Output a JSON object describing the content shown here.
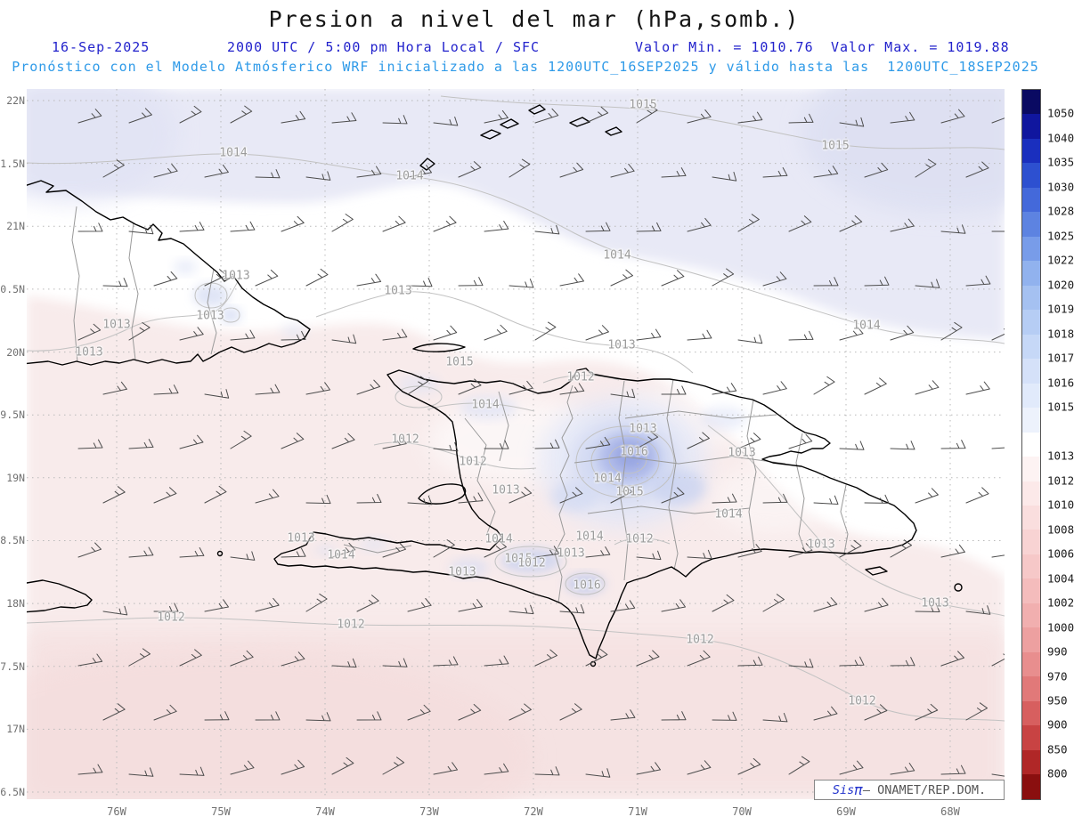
{
  "title": "Presion a nivel del mar (hPa,somb.)",
  "header": {
    "date": "16-Sep-2025",
    "time": "2000 UTC / 5:00 pm Hora Local / SFC",
    "valor_min": "Valor Min. = 1010.76",
    "valor_max": "Valor Max. = 1019.88",
    "model_line": "Pronóstico con el Modelo Atmósferico WRF inicializado a las 1200UTC_16SEP2025 y válido hasta las  1200UTC_18SEP2025"
  },
  "watermark": {
    "sis": "Sis",
    "pi": "π",
    "rest": "– ONAMET/REP.DOM."
  },
  "chart_data": {
    "type": "heatmap",
    "title": "Presion a nivel del mar (hPa,somb.)",
    "variable": "Sea level pressure (hPa, shaded) with wind barbs, WRF forecast",
    "date": "16-Sep-2025",
    "valid_time": "2000 UTC / 5:00 pm Hora Local / SFC",
    "min_value": 1010.76,
    "max_value": 1019.88,
    "x_ticks": [
      "76W",
      "75W",
      "74W",
      "73W",
      "72W",
      "71W",
      "70W",
      "69W",
      "68W"
    ],
    "y_ticks": [
      "22N",
      "1.5N",
      "21N",
      "0.5N",
      "20N",
      "9.5N",
      "19N",
      "8.5N",
      "18N",
      "7.5N",
      "17N",
      "6.5N"
    ],
    "legend_position": "right",
    "grid": "dashed",
    "colorbar": {
      "segments": [
        {
          "color": "#0a0a62",
          "label": "1050"
        },
        {
          "color": "#10169e",
          "label": "1040"
        },
        {
          "color": "#1a2fbe",
          "label": "1035"
        },
        {
          "color": "#2d50d0",
          "label": "1030"
        },
        {
          "color": "#4469da",
          "label": "1028"
        },
        {
          "color": "#5d83e1",
          "label": "1025"
        },
        {
          "color": "#789ce9",
          "label": "1022"
        },
        {
          "color": "#91b2ee",
          "label": "1020"
        },
        {
          "color": "#a5c1f1",
          "label": "1019"
        },
        {
          "color": "#b6cdf4",
          "label": "1018"
        },
        {
          "color": "#c6d8f7",
          "label": "1017"
        },
        {
          "color": "#d5e1f9",
          "label": "1016"
        },
        {
          "color": "#e1eafb",
          "label": "1015"
        },
        {
          "color": "#edf2fc",
          "label": ""
        },
        {
          "color": "#ffffff",
          "label": "1013"
        },
        {
          "color": "#fdf3f3",
          "label": "1012"
        },
        {
          "color": "#fce9e9",
          "label": "1010"
        },
        {
          "color": "#fadede",
          "label": "1008"
        },
        {
          "color": "#f8d3d3",
          "label": "1006"
        },
        {
          "color": "#f6c8c8",
          "label": "1004"
        },
        {
          "color": "#f4bcbc",
          "label": "1002"
        },
        {
          "color": "#f1afaf",
          "label": "1000"
        },
        {
          "color": "#eda0a0",
          "label": "990"
        },
        {
          "color": "#e88e8e",
          "label": "970"
        },
        {
          "color": "#e17979",
          "label": "950"
        },
        {
          "color": "#d75f5f",
          "label": "900"
        },
        {
          "color": "#c84343",
          "label": "850"
        },
        {
          "color": "#b02727",
          "label": "800"
        },
        {
          "color": "#8a0f0f",
          "label": ""
        }
      ]
    },
    "contour_labels_hpa": [
      {
        "v": "1015",
        "x": 722,
        "y": 118
      },
      {
        "v": "1014",
        "x": 262,
        "y": 172
      },
      {
        "v": "1015",
        "x": 938,
        "y": 164
      },
      {
        "v": "1014",
        "x": 460,
        "y": 198
      },
      {
        "v": "1014",
        "x": 693,
        "y": 287
      },
      {
        "v": "1013",
        "x": 265,
        "y": 310
      },
      {
        "v": "1013",
        "x": 447,
        "y": 327
      },
      {
        "v": "1013",
        "x": 236,
        "y": 355
      },
      {
        "v": "1013",
        "x": 131,
        "y": 365
      },
      {
        "v": "1014",
        "x": 973,
        "y": 366
      },
      {
        "v": "1013",
        "x": 100,
        "y": 396
      },
      {
        "v": "1013",
        "x": 698,
        "y": 388
      },
      {
        "v": "1015",
        "x": 516,
        "y": 407
      },
      {
        "v": "1012",
        "x": 652,
        "y": 424
      },
      {
        "v": "1014",
        "x": 545,
        "y": 455
      },
      {
        "v": "1012",
        "x": 455,
        "y": 494
      },
      {
        "v": "1013",
        "x": 722,
        "y": 482
      },
      {
        "v": "1016",
        "x": 712,
        "y": 508
      },
      {
        "v": "1013",
        "x": 833,
        "y": 509
      },
      {
        "v": "1012",
        "x": 531,
        "y": 519
      },
      {
        "v": "1014",
        "x": 682,
        "y": 538
      },
      {
        "v": "1013",
        "x": 568,
        "y": 551
      },
      {
        "v": "1015",
        "x": 707,
        "y": 553
      },
      {
        "v": "1014",
        "x": 818,
        "y": 578
      },
      {
        "v": "1013",
        "x": 338,
        "y": 605
      },
      {
        "v": "1014",
        "x": 560,
        "y": 606
      },
      {
        "v": "1014",
        "x": 662,
        "y": 603
      },
      {
        "v": "1012",
        "x": 718,
        "y": 606
      },
      {
        "v": "1013",
        "x": 922,
        "y": 612
      },
      {
        "v": "1014",
        "x": 383,
        "y": 624
      },
      {
        "v": "1015",
        "x": 582,
        "y": 628
      },
      {
        "v": "1013",
        "x": 641,
        "y": 622
      },
      {
        "v": "1012",
        "x": 597,
        "y": 633
      },
      {
        "v": "1013",
        "x": 519,
        "y": 643
      },
      {
        "v": "1016",
        "x": 659,
        "y": 658
      },
      {
        "v": "1013",
        "x": 1050,
        "y": 678
      },
      {
        "v": "1012",
        "x": 192,
        "y": 694
      },
      {
        "v": "1012",
        "x": 394,
        "y": 702
      },
      {
        "v": "1012",
        "x": 786,
        "y": 719
      },
      {
        "v": "1012",
        "x": 968,
        "y": 788
      }
    ],
    "wind_barbs": {
      "cols": 19,
      "rows": 13,
      "x0": 88,
      "y0": 138,
      "dx": 57,
      "dy": 61,
      "stagger": 28,
      "typical_direction": "E-ENE"
    }
  }
}
